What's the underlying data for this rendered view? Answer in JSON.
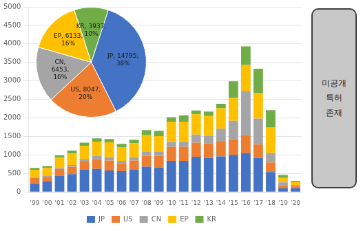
{
  "chart_data": [
    {
      "type": "bar",
      "stacked": true,
      "categories": [
        "'99",
        "'00",
        "'01",
        "'02",
        "'03",
        "'04",
        "'05",
        "'06",
        "'07",
        "'08",
        "'09",
        "'10",
        "'11",
        "'12",
        "'13",
        "'14",
        "'15",
        "'16",
        "'17",
        "'18",
        "'19",
        "'20"
      ],
      "series": [
        {
          "name": "JP",
          "color": "#4472C4",
          "values": [
            220,
            280,
            440,
            480,
            600,
            620,
            580,
            560,
            600,
            680,
            660,
            840,
            840,
            950,
            920,
            960,
            1000,
            1050,
            920,
            540,
            100,
            100
          ]
        },
        {
          "name": "US",
          "color": "#ED7D31",
          "values": [
            160,
            130,
            180,
            200,
            220,
            260,
            270,
            200,
            250,
            300,
            320,
            380,
            380,
            380,
            390,
            400,
            420,
            480,
            360,
            260,
            80,
            60
          ]
        },
        {
          "name": "CN",
          "color": "#A5A5A5",
          "values": [
            20,
            20,
            30,
            50,
            70,
            90,
            90,
            80,
            90,
            100,
            100,
            130,
            130,
            220,
            200,
            350,
            500,
            1200,
            700,
            250,
            80,
            30
          ]
        },
        {
          "name": "EP",
          "color": "#FFC000",
          "values": [
            200,
            220,
            280,
            310,
            360,
            390,
            400,
            370,
            380,
            450,
            430,
            550,
            550,
            550,
            540,
            550,
            620,
            700,
            700,
            700,
            120,
            80
          ]
        },
        {
          "name": "KR",
          "color": "#70AD47",
          "values": [
            50,
            50,
            60,
            80,
            80,
            90,
            90,
            90,
            90,
            140,
            140,
            120,
            170,
            100,
            120,
            120,
            450,
            500,
            650,
            460,
            80,
            30
          ]
        }
      ],
      "ylim": [
        0,
        5000
      ],
      "yticks": [
        0,
        500,
        1000,
        1500,
        2000,
        2500,
        3000,
        3500,
        4000,
        4500,
        5000
      ],
      "grid": true,
      "legend": "bottom",
      "annotations": [
        "미공개\n특허\n존재"
      ]
    },
    {
      "type": "pie",
      "categories": [
        "JP",
        "US",
        "CN",
        "EP",
        "KR"
      ],
      "values": [
        14795,
        8047,
        6453,
        6133,
        3937
      ],
      "value_labels": [
        "JP, 14795,\n38%",
        "US, 8047,\n20%",
        "CN,\n6453,\n16%",
        "EP, 6133,\n16%",
        "KR, 3937,\n10%"
      ],
      "colors": [
        "#4472C4",
        "#ED7D31",
        "#A5A5A5",
        "#FFC000",
        "#70AD47"
      ],
      "data_labels": true
    }
  ]
}
